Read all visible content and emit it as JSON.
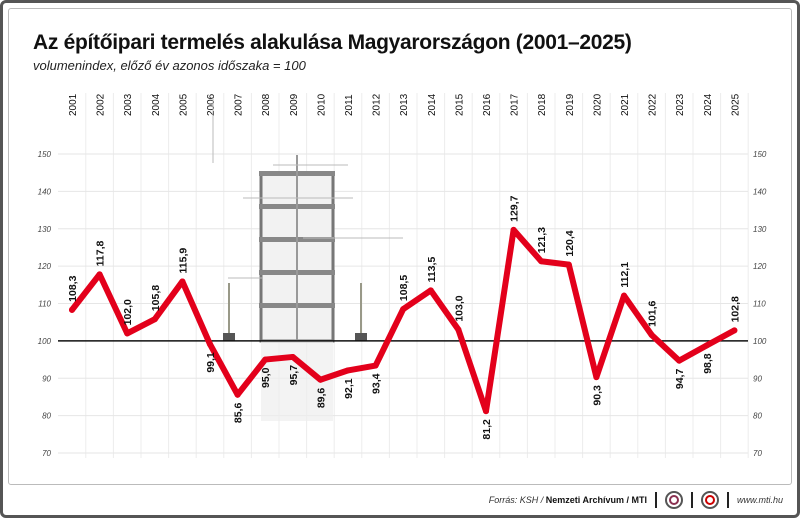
{
  "header": {
    "title": "Az építőipari termelés alakulása Magyarországon (2001–2025)",
    "subtitle": "volumenindex, előző év azonos időszaka = 100"
  },
  "footer": {
    "source_prefix": "Forrás: KSH / ",
    "source_bold": "Nemzeti Archívum / MTI",
    "website": "www.mti.hu"
  },
  "colors": {
    "line": "#e3001b",
    "baseline": "#111111",
    "grid": "#e6e6e6"
  },
  "chart_data": {
    "type": "line",
    "title": "Az építőipari termelés alakulása Magyarországon (2001–2025)",
    "ylabel": "volumenindex, előző év azonos időszaka = 100",
    "categories": [
      "2001",
      "2002",
      "2003",
      "2004",
      "2005",
      "2006",
      "2007",
      "2008",
      "2009",
      "2010",
      "2011",
      "2012",
      "2013",
      "2014",
      "2015",
      "2016",
      "2017",
      "2018",
      "2019",
      "2020",
      "2021",
      "2022",
      "2023",
      "2024",
      "2025"
    ],
    "values": [
      108.3,
      117.8,
      102.0,
      105.8,
      115.9,
      99.1,
      85.6,
      95.0,
      95.7,
      89.6,
      92.1,
      93.4,
      108.5,
      113.5,
      103.0,
      81.2,
      129.7,
      121.3,
      120.4,
      90.3,
      112.1,
      101.6,
      94.7,
      98.8,
      102.8
    ],
    "labels": [
      "108,3",
      "117,8",
      "102,0",
      "105,8",
      "115,9",
      "99,1",
      "85,6",
      "95,0",
      "95,7",
      "89,6",
      "92,1",
      "93,4",
      "108,5",
      "113,5",
      "103,0",
      "81,2",
      "129,7",
      "121,3",
      "120,4",
      "90,3",
      "112,1",
      "101,6",
      "94,7",
      "98,8",
      "102,8"
    ],
    "yticks": [
      "150",
      "140",
      "130",
      "120",
      "110",
      "100",
      "90",
      "80",
      "70"
    ],
    "ylim": [
      70,
      150
    ],
    "reference_line": 100,
    "grid": true
  }
}
